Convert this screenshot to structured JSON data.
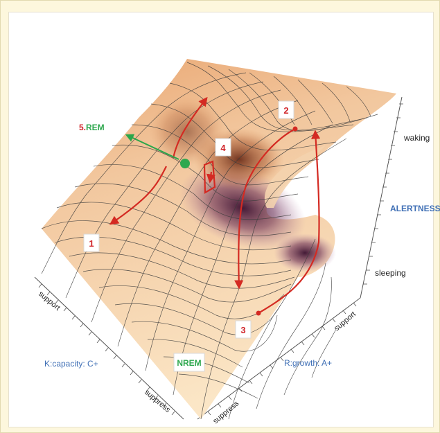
{
  "labels": {
    "waking": "waking",
    "sleeping": "sleeping",
    "alertness": "ALERTNESS",
    "k_capacity": "K:capacity: C+",
    "r_growth": "R:growth: A+",
    "nrem": "NREM",
    "rem_number": "5.",
    "rem_word": "REM",
    "left_axis_support": "support",
    "left_axis_suppress": "suppress",
    "right_axis_support": "support",
    "right_axis_suppress": "suppress"
  },
  "markers": [
    "1",
    "2",
    "3",
    "4"
  ],
  "colors": {
    "axis_label_blue": "#3f6fb5",
    "nrem_green": "#2fa84f",
    "rem_red": "#d1262b",
    "path_red": "#d42a22",
    "rem_arrow_green": "#2aa64a"
  }
}
